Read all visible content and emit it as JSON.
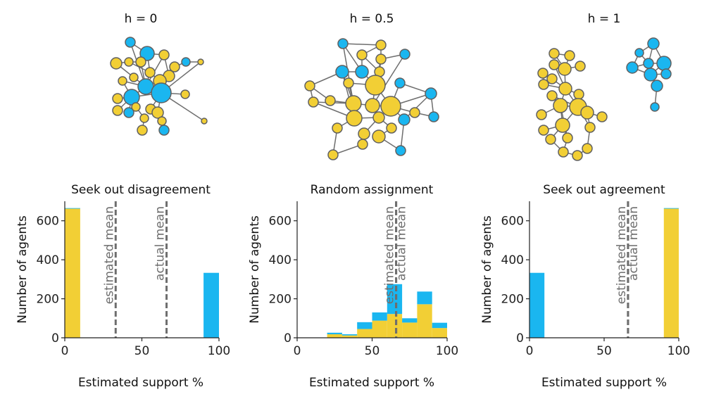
{
  "colors": {
    "yellow": "#f2cf35",
    "blue": "#1ab6f0",
    "edge": "#6e6e6e",
    "node_stroke": "#606060",
    "mean_line": "#6e6e6e"
  },
  "networks": [
    {
      "title": "h = 0"
    },
    {
      "title": "h = 0.5"
    },
    {
      "title": "h = 1"
    }
  ],
  "chart_data": [
    {
      "type": "bar",
      "title": "Seek out disagreement",
      "xlabel": "Estimated support %",
      "ylabel": "Number of agents",
      "xlim": [
        0,
        100
      ],
      "ylim": [
        0,
        700
      ],
      "xticks": [
        "0",
        "50",
        "100"
      ],
      "yticks": [
        "0",
        "200",
        "400",
        "600"
      ],
      "bin_edges": [
        0,
        10,
        20,
        30,
        40,
        50,
        60,
        70,
        80,
        90,
        100
      ],
      "series": [
        {
          "color": "yellow",
          "values": [
            662,
            0,
            0,
            0,
            0,
            0,
            0,
            0,
            0,
            0
          ]
        },
        {
          "color": "blue",
          "values": [
            3,
            0,
            0,
            0,
            0,
            0,
            0,
            0,
            0,
            333
          ]
        }
      ],
      "stacked": true,
      "lines": [
        {
          "label": "estimated mean",
          "x": 33
        },
        {
          "label": "actual mean",
          "x": 66
        }
      ]
    },
    {
      "type": "bar",
      "title": "Random assignment",
      "xlabel": "Estimated support %",
      "ylabel": "Number of agents",
      "xlim": [
        0,
        100
      ],
      "ylim": [
        0,
        700
      ],
      "xticks": [
        "0",
        "50",
        "100"
      ],
      "yticks": [
        "0",
        "200",
        "400",
        "600"
      ],
      "bin_edges": [
        0,
        10,
        20,
        30,
        40,
        50,
        60,
        70,
        80,
        90,
        100
      ],
      "series": [
        {
          "color": "yellow",
          "values": [
            0,
            0,
            18,
            12,
            45,
            88,
            122,
            78,
            172,
            50
          ]
        },
        {
          "color": "blue",
          "values": [
            0,
            0,
            8,
            6,
            35,
            42,
            153,
            22,
            65,
            27
          ]
        }
      ],
      "stacked": true,
      "lines": [
        {
          "label": "estimated mean",
          "x": 66
        },
        {
          "label": "actual mean",
          "x": 66
        }
      ]
    },
    {
      "type": "bar",
      "title": "Seek out agreement",
      "xlabel": "Estimated support %",
      "ylabel": "Number of agents",
      "xlim": [
        0,
        100
      ],
      "ylim": [
        0,
        700
      ],
      "xticks": [
        "0",
        "50",
        "100"
      ],
      "yticks": [
        "0",
        "200",
        "400",
        "600"
      ],
      "bin_edges": [
        0,
        10,
        20,
        30,
        40,
        50,
        60,
        70,
        80,
        90,
        100
      ],
      "series": [
        {
          "color": "yellow",
          "values": [
            0,
            0,
            0,
            0,
            0,
            0,
            0,
            0,
            0,
            662
          ]
        },
        {
          "color": "blue",
          "values": [
            333,
            0,
            0,
            0,
            0,
            0,
            0,
            0,
            0,
            3
          ]
        }
      ],
      "stacked": true,
      "lines": [
        {
          "label": "estimated mean",
          "x": 66
        },
        {
          "label": "actual mean",
          "x": 66
        }
      ]
    }
  ]
}
